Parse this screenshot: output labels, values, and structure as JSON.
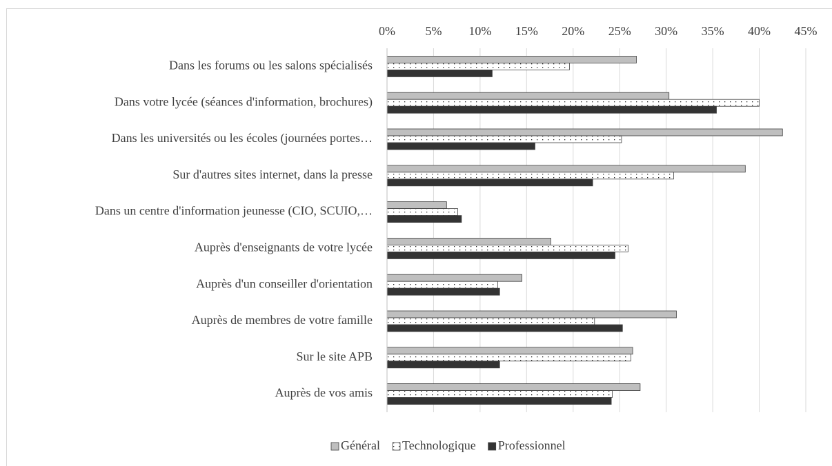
{
  "chart_data": {
    "type": "hbar",
    "categories": [
      "Dans les forums ou les salons spécialisés",
      "Dans votre lycée (séances d'information, brochures)",
      "Dans les universités ou les écoles (journées portes…",
      "Sur d'autres sites internet, dans la presse",
      "Dans un centre d'information jeunesse (CIO, SCUIO,…",
      "Auprès d'enseignants de votre lycée",
      "Auprès d'un conseiller d'orientation",
      "Auprès de membres de votre famille",
      "Sur le site APB",
      "Auprès de vos amis"
    ],
    "series": [
      {
        "name": "Général",
        "color": "#bfbfbf",
        "values": [
          26.8,
          30.3,
          42.5,
          38.5,
          6.4,
          17.6,
          14.5,
          31.1,
          26.4,
          27.2
        ]
      },
      {
        "name": "Technologique",
        "color": "#ffffff",
        "pattern": "dots",
        "values": [
          19.6,
          40.0,
          25.2,
          30.8,
          7.6,
          25.9,
          11.9,
          22.3,
          26.2,
          24.2
        ]
      },
      {
        "name": "Professionnel",
        "color": "#333333",
        "values": [
          11.3,
          35.4,
          15.9,
          22.1,
          8.0,
          24.5,
          12.1,
          25.3,
          12.1,
          24.1
        ]
      }
    ],
    "xlim": [
      0,
      45
    ],
    "xticks": [
      {
        "value": 0,
        "label": "0%"
      },
      {
        "value": 5,
        "label": "5%"
      },
      {
        "value": 10,
        "label": "10%"
      },
      {
        "value": 15,
        "label": "15%"
      },
      {
        "value": 20,
        "label": "20%"
      },
      {
        "value": 25,
        "label": "25%"
      },
      {
        "value": 30,
        "label": "30%"
      },
      {
        "value": 35,
        "label": "35%"
      },
      {
        "value": 40,
        "label": "40%"
      },
      {
        "value": 45,
        "label": "45%"
      }
    ],
    "grid": true,
    "legend": "bottom"
  }
}
